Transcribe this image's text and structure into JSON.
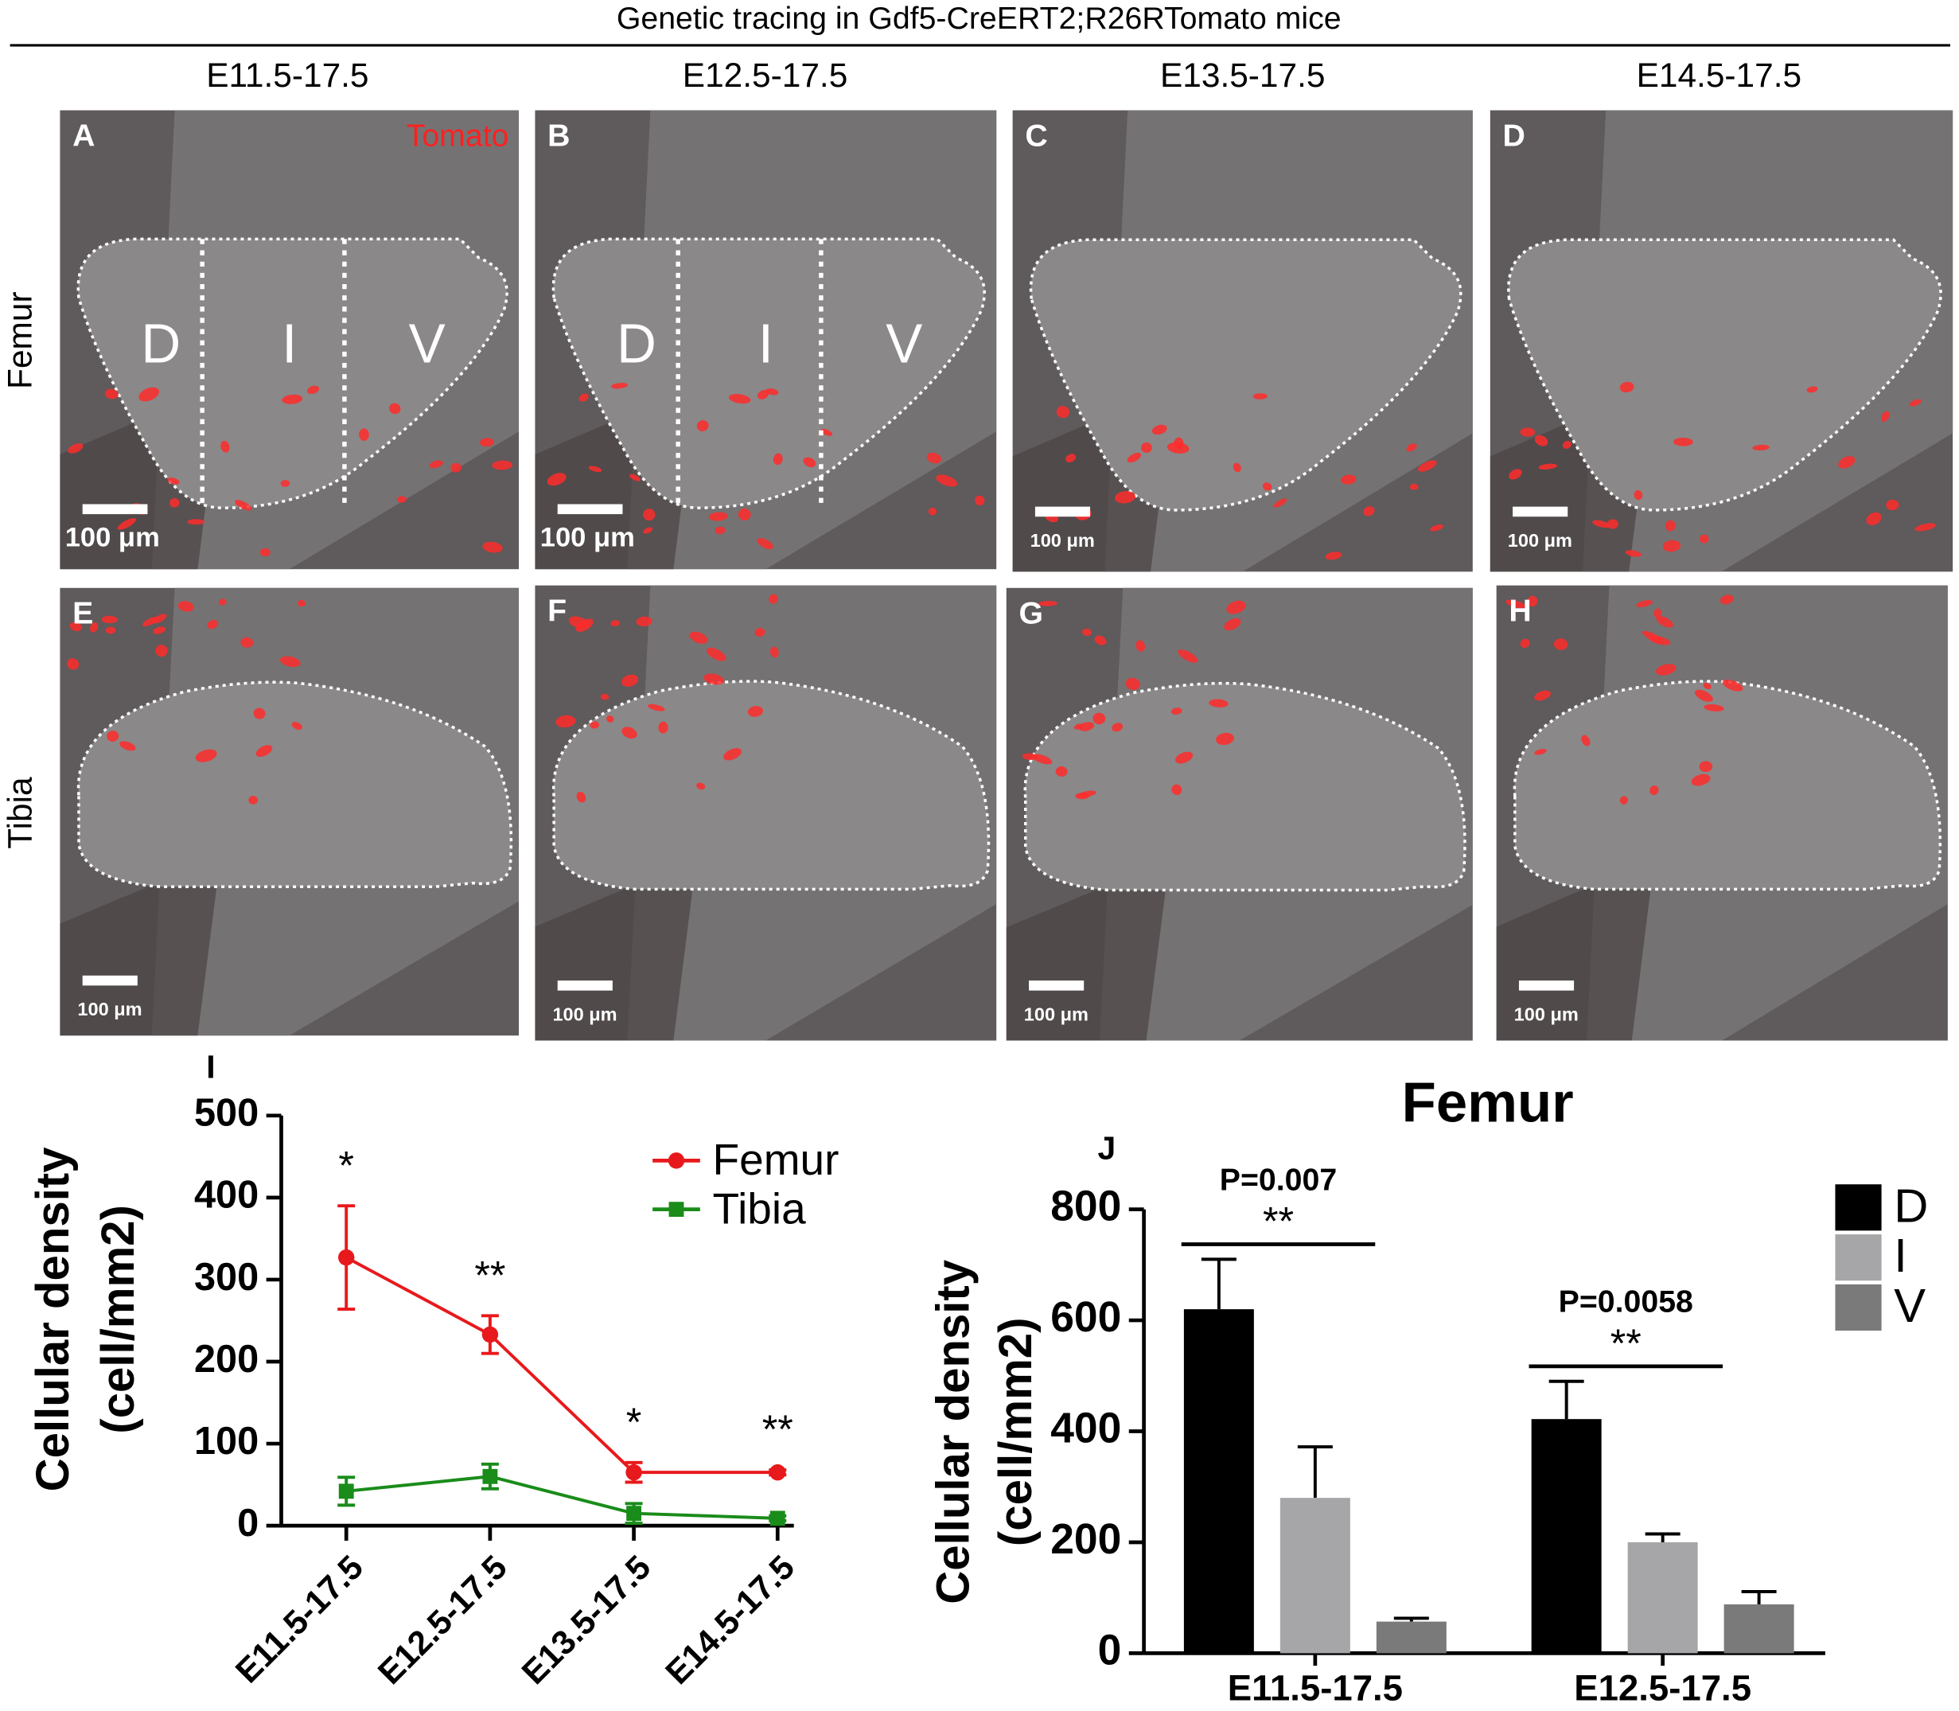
{
  "figure": {
    "title": "Genetic tracing in Gdf5-CreERT2;R26RTomato mice",
    "columns": [
      "E11.5-17.5",
      "E12.5-17.5",
      "E13.5-17.5",
      "E14.5-17.5"
    ],
    "rows": [
      "Femur",
      "Tibia"
    ],
    "panel_letters": [
      "A",
      "B",
      "C",
      "D",
      "E",
      "F",
      "G",
      "H"
    ],
    "tomato_label": "Tomato",
    "zone_labels": [
      "D",
      "I",
      "V"
    ],
    "scale_bar_label": "100 μm"
  },
  "chart_data": [
    {
      "type": "line",
      "panel": "I",
      "ylabel": [
        "Cellular density",
        "(cell/mm2)"
      ],
      "categories": [
        "E11.5-17.5",
        "E12.5-17.5",
        "E13.5-17.5",
        "E14.5-17.5"
      ],
      "series": [
        {
          "name": "Femur",
          "color": "#e8191c",
          "marker": "circle",
          "values": [
            327,
            233,
            65,
            65
          ],
          "errors": [
            63,
            23,
            12,
            3
          ]
        },
        {
          "name": "Tibia",
          "color": "#1a8c1a",
          "marker": "square",
          "values": [
            42,
            60,
            15,
            9
          ],
          "errors": [
            17,
            15,
            12,
            3
          ]
        }
      ],
      "annotations": [
        "*",
        "**",
        "*",
        "**"
      ],
      "ylim": [
        0,
        500
      ],
      "yticks": [
        0,
        100,
        200,
        300,
        400,
        500
      ],
      "legend": "upper right"
    },
    {
      "type": "bar",
      "panel": "J",
      "title": "Femur",
      "ylabel": [
        "Cellular density",
        "(cell/mm2)"
      ],
      "categories": [
        "E11.5-17.5",
        "E12.5-17.5"
      ],
      "series": [
        {
          "name": "D",
          "color": "#000000",
          "values": [
            620,
            422
          ],
          "errors": [
            90,
            68
          ]
        },
        {
          "name": "I",
          "color": "#a6a6a8",
          "values": [
            280,
            200
          ],
          "errors": [
            92,
            15
          ]
        },
        {
          "name": "V",
          "color": "#7a7a7a",
          "values": [
            57,
            88
          ],
          "errors": [
            6,
            23
          ]
        }
      ],
      "annotations": [
        [
          "P=0.007",
          "**"
        ],
        [
          "P=0.0058",
          "**"
        ]
      ],
      "ylim": [
        0,
        800
      ],
      "yticks": [
        0,
        200,
        400,
        600,
        800
      ],
      "legend": "right"
    }
  ]
}
